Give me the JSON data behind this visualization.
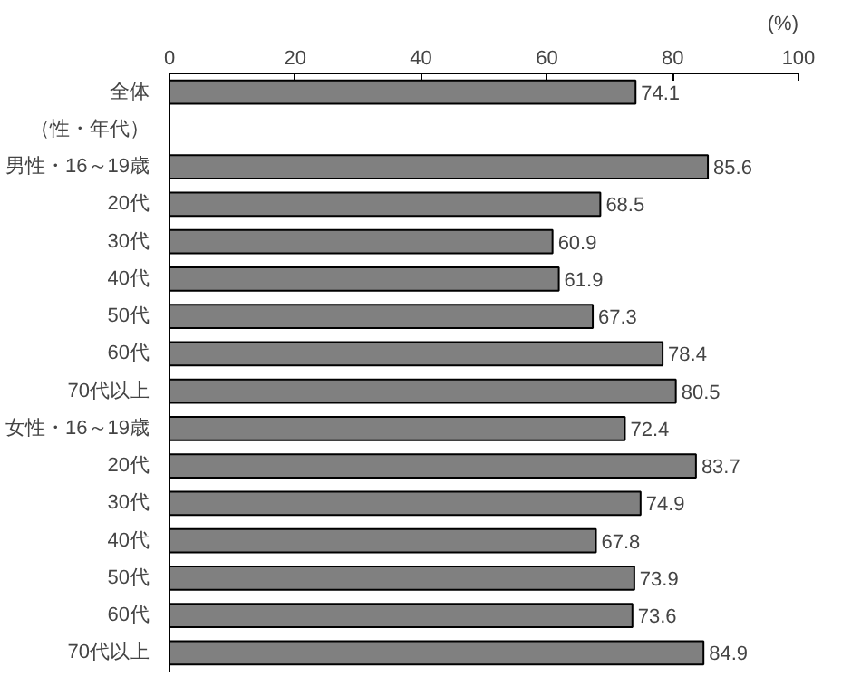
{
  "chart_data": {
    "type": "bar",
    "orientation": "horizontal",
    "xlabel": "(%)",
    "categories": [
      "全体",
      "（性・年代）",
      "男性・16～19歳",
      "20代",
      "30代",
      "40代",
      "50代",
      "60代",
      "70代以上",
      "女性・16～19歳",
      "20代",
      "30代",
      "40代",
      "50代",
      "60代",
      "70代以上"
    ],
    "values": [
      74.1,
      null,
      85.6,
      68.5,
      60.9,
      61.9,
      67.3,
      78.4,
      80.5,
      72.4,
      83.7,
      74.9,
      67.8,
      73.9,
      73.6,
      84.9
    ],
    "color": "#808080",
    "xlim": [
      0,
      100
    ],
    "xticks": [
      0,
      20,
      40,
      60,
      80,
      100
    ],
    "data_labels": true,
    "grid": false
  }
}
